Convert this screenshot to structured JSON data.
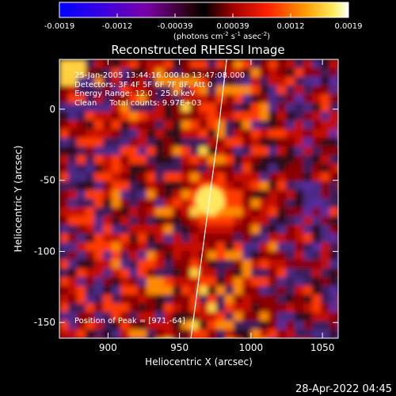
{
  "chart_data": {
    "type": "heatmap",
    "title": "Reconstructed RHESSI Image",
    "xlabel": "Heliocentric X (arcsec)",
    "ylabel": "Heliocentric Y (arcsec)",
    "xlim": [
      866,
      1061
    ],
    "ylim": [
      -161,
      35
    ],
    "xticks": [
      900,
      950,
      1000,
      1050
    ],
    "yticks": [
      0,
      -50,
      -100,
      -150
    ],
    "colorbar": {
      "ticks": [
        "-0.0019",
        "-0.0012",
        "-0.00039",
        "0.00039",
        "0.0012",
        "0.0019"
      ],
      "unit_text": "(photons cm",
      "unit_sup1": "-2",
      "unit_mid": " s",
      "unit_sup2": "-1",
      "unit_mid2": " asec",
      "unit_sup3": "-2",
      "unit_end": ")",
      "colors": [
        "#0000ff",
        "#5a00c8",
        "#9a0080",
        "#000000",
        "#a00000",
        "#ff3000",
        "#ffb000",
        "#ffffff"
      ]
    },
    "peak": {
      "x": 971,
      "y": -64
    },
    "annotations": [
      "25-Jan-2005 13:44:16.000 to 13:47:08.000",
      "Detectors: 3F 4F 5F 6F 7F 8F, Att 0",
      "Energy Range: 12.0 - 25.0 keV",
      "Clean     Total counts: 9.97E+03"
    ],
    "peak_label": "Position of Peak = [971,-64]",
    "limb_line": [
      [
        958,
        -161
      ],
      [
        976,
        -25
      ],
      [
        983,
        35
      ]
    ]
  },
  "footer": {
    "timestamp": "28-Apr-2022 04:45"
  }
}
